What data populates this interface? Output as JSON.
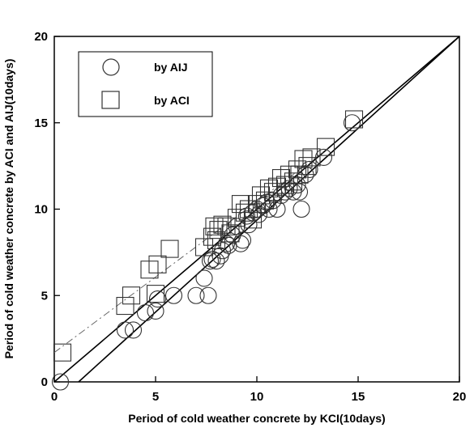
{
  "chart_data": {
    "type": "scatter",
    "xlabel": "Period of cold weather concrete by KCI(10days)",
    "ylabel": "Period of cold weather concrete by ACI and AIJ(10days)",
    "xlim": [
      0,
      20
    ],
    "ylim": [
      0,
      20
    ],
    "xticks": [
      "0",
      "5",
      "10",
      "15",
      "20"
    ],
    "yticks": [
      "0",
      "5",
      "10",
      "15",
      "20"
    ],
    "grid": false,
    "legend_position": "top-left",
    "series": [
      {
        "name": "by AIJ",
        "marker": "circle",
        "points": [
          [
            0.3,
            0
          ],
          [
            3.5,
            3
          ],
          [
            3.9,
            3
          ],
          [
            4.5,
            4
          ],
          [
            5,
            4.1
          ],
          [
            5.1,
            4.8
          ],
          [
            5.9,
            5
          ],
          [
            7,
            5
          ],
          [
            7.4,
            6
          ],
          [
            7.6,
            5
          ],
          [
            7.7,
            7
          ],
          [
            7.8,
            7.1
          ],
          [
            8,
            7
          ],
          [
            8.2,
            7.3
          ],
          [
            8.3,
            7.6
          ],
          [
            8.5,
            8
          ],
          [
            8.6,
            7.9
          ],
          [
            8.8,
            8.5
          ],
          [
            9,
            9
          ],
          [
            9.2,
            8
          ],
          [
            9.3,
            8.2
          ],
          [
            9.5,
            9.6
          ],
          [
            9.6,
            9.1
          ],
          [
            9.8,
            9.8
          ],
          [
            10,
            10
          ],
          [
            10.1,
            9.7
          ],
          [
            10.3,
            10.2
          ],
          [
            10.5,
            10.4
          ],
          [
            10.6,
            10
          ],
          [
            10.8,
            10.5
          ],
          [
            11,
            10
          ],
          [
            11.2,
            10.8
          ],
          [
            11.4,
            11
          ],
          [
            11.6,
            11.2
          ],
          [
            11.8,
            11
          ],
          [
            12,
            11.4
          ],
          [
            12.1,
            11
          ],
          [
            12.2,
            10
          ],
          [
            12.4,
            12
          ],
          [
            12.6,
            12.3
          ],
          [
            13.3,
            13
          ],
          [
            14.7,
            15
          ]
        ]
      },
      {
        "name": "by ACI",
        "marker": "square",
        "points": [
          [
            0.4,
            1.7
          ],
          [
            3.5,
            4.4
          ],
          [
            3.8,
            5
          ],
          [
            4.7,
            6.5
          ],
          [
            5,
            5.1
          ],
          [
            5.1,
            6.8
          ],
          [
            5.7,
            7.7
          ],
          [
            7.4,
            7.8
          ],
          [
            7.8,
            8.4
          ],
          [
            7.9,
            9
          ],
          [
            8,
            8.2
          ],
          [
            8.1,
            8.8
          ],
          [
            8.3,
            9.1
          ],
          [
            8.5,
            9
          ],
          [
            8.7,
            8.6
          ],
          [
            9,
            9.5
          ],
          [
            9.2,
            10.3
          ],
          [
            9.4,
            9.8
          ],
          [
            9.6,
            10
          ],
          [
            9.8,
            9.4
          ],
          [
            10,
            10.3
          ],
          [
            10.2,
            10.8
          ],
          [
            10.4,
            10.5
          ],
          [
            10.6,
            11.2
          ],
          [
            10.8,
            11
          ],
          [
            11,
            11.3
          ],
          [
            11.2,
            11.8
          ],
          [
            11.4,
            11.4
          ],
          [
            11.6,
            12
          ],
          [
            11.8,
            11.6
          ],
          [
            12,
            12.3
          ],
          [
            12.1,
            12
          ],
          [
            12.3,
            12.9
          ],
          [
            12.5,
            12.5
          ],
          [
            12.7,
            13
          ],
          [
            13.4,
            13.6
          ],
          [
            14.8,
            15.2
          ]
        ]
      }
    ],
    "fit_lines": [
      {
        "series": "by AIJ",
        "style": "solid",
        "x": [
          0,
          20
        ],
        "y": [
          0,
          20
        ]
      },
      {
        "series": "by ACI",
        "style": "dash-dot",
        "x": [
          0,
          13.5
        ],
        "y": [
          1.7,
          13.5
        ]
      },
      {
        "series": "reference",
        "style": "solid",
        "x": [
          1.2,
          20
        ],
        "y": [
          0,
          20
        ]
      }
    ]
  }
}
